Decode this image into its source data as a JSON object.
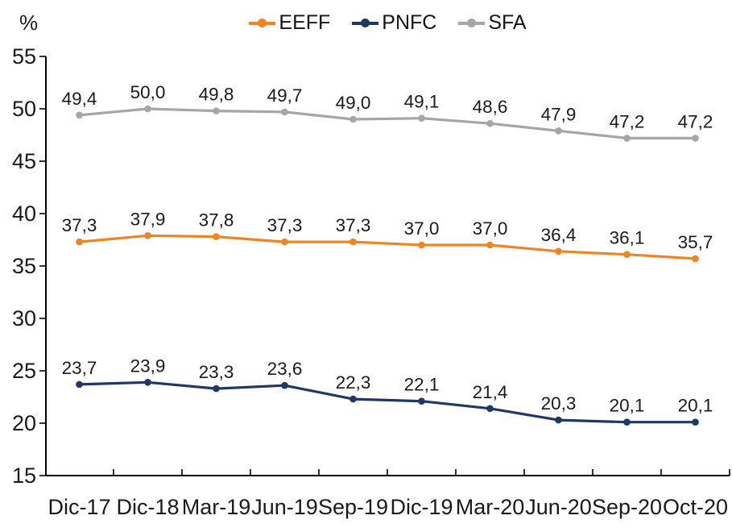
{
  "chart_data": {
    "type": "line",
    "title": "",
    "ylabel": "%",
    "xlabel": "",
    "ylim": [
      15,
      55
    ],
    "ytick_step": 5,
    "grid": false,
    "legend_position": "top",
    "data_labels": true,
    "decimal_separator": ",",
    "categories": [
      "Dic-17",
      "Dic-18",
      "Mar-19",
      "Jun-19",
      "Sep-19",
      "Dic-19",
      "Mar-20",
      "Jun-20",
      "Sep-20",
      "Oct-20"
    ],
    "series": [
      {
        "name": "EEFF",
        "color": "#EE8522",
        "values": [
          37.3,
          37.9,
          37.8,
          37.3,
          37.3,
          37.0,
          37.0,
          36.4,
          36.1,
          35.7
        ]
      },
      {
        "name": "PNFC",
        "color": "#1F3864",
        "values": [
          23.7,
          23.9,
          23.3,
          23.6,
          22.3,
          22.1,
          21.4,
          20.3,
          20.1,
          20.1
        ]
      },
      {
        "name": "SFA",
        "color": "#A6A6A6",
        "values": [
          49.4,
          50.0,
          49.8,
          49.7,
          49.0,
          49.1,
          48.6,
          47.9,
          47.2,
          47.2
        ]
      }
    ],
    "axis_color": "#000000",
    "label_color": "#1a1a1a"
  }
}
